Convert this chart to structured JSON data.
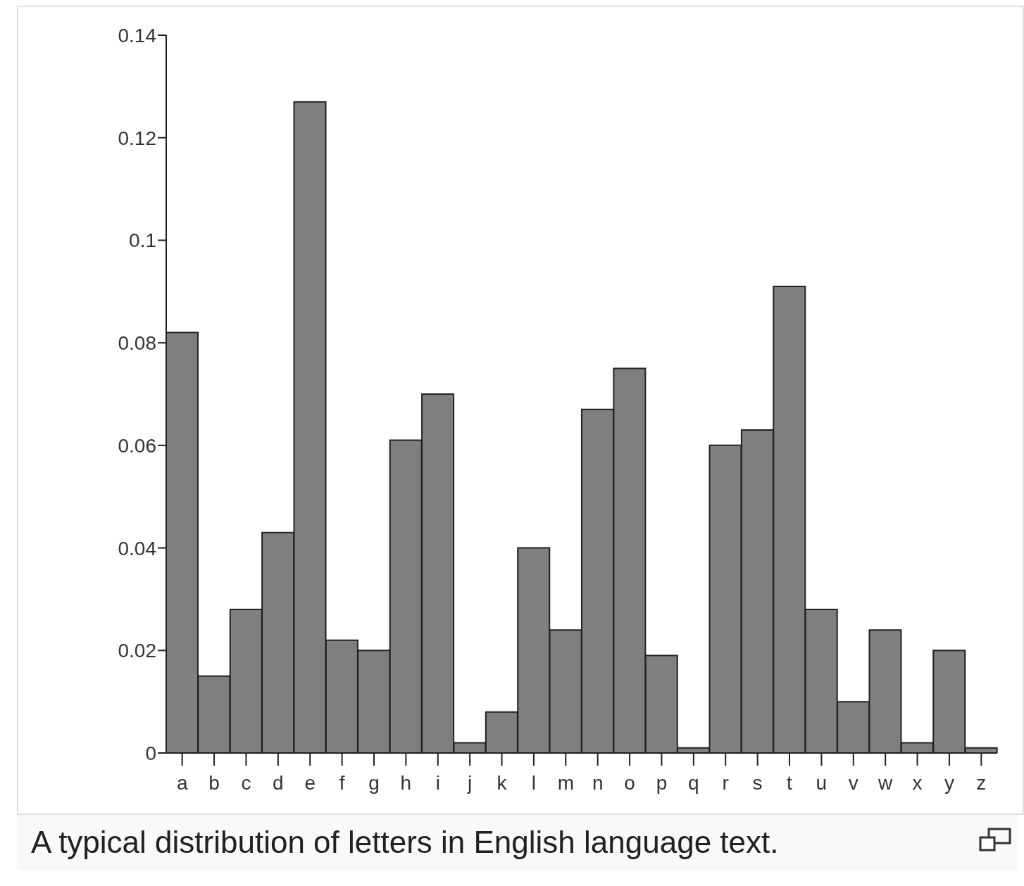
{
  "chart_data": {
    "type": "bar",
    "categories": [
      "a",
      "b",
      "c",
      "d",
      "e",
      "f",
      "g",
      "h",
      "i",
      "j",
      "k",
      "l",
      "m",
      "n",
      "o",
      "p",
      "q",
      "r",
      "s",
      "t",
      "u",
      "v",
      "w",
      "x",
      "y",
      "z"
    ],
    "values": [
      0.082,
      0.015,
      0.028,
      0.043,
      0.127,
      0.022,
      0.02,
      0.061,
      0.07,
      0.002,
      0.008,
      0.04,
      0.024,
      0.067,
      0.075,
      0.019,
      0.001,
      0.06,
      0.063,
      0.091,
      0.028,
      0.01,
      0.024,
      0.002,
      0.02,
      0.001
    ],
    "color": "#7f7f7f",
    "ylim": [
      0,
      0.14
    ],
    "yticks": [
      0,
      0.02,
      0.04,
      0.06,
      0.08,
      0.1,
      0.12,
      0.14
    ],
    "grid": false,
    "annotations": [
      "A typical distribution of letters in English language text."
    ]
  }
}
